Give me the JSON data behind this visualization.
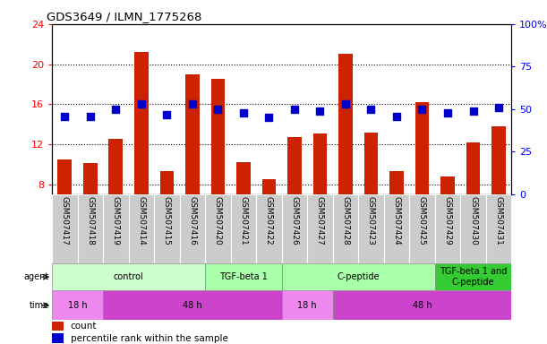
{
  "title": "GDS3649 / ILMN_1775268",
  "samples": [
    "GSM507417",
    "GSM507418",
    "GSM507419",
    "GSM507414",
    "GSM507415",
    "GSM507416",
    "GSM507420",
    "GSM507421",
    "GSM507422",
    "GSM507426",
    "GSM507427",
    "GSM507428",
    "GSM507423",
    "GSM507424",
    "GSM507425",
    "GSM507429",
    "GSM507430",
    "GSM507431"
  ],
  "counts": [
    10.5,
    10.1,
    12.5,
    21.2,
    9.3,
    19.0,
    18.5,
    10.2,
    8.5,
    12.7,
    13.1,
    21.0,
    13.2,
    9.3,
    16.2,
    8.8,
    12.2,
    13.8
  ],
  "percentiles": [
    46,
    46,
    50,
    53,
    47,
    53,
    50,
    48,
    45,
    50,
    49,
    53,
    50,
    46,
    50,
    48,
    49,
    51
  ],
  "ylim_left": [
    7,
    24
  ],
  "ylim_right": [
    0,
    100
  ],
  "yticks_left": [
    8,
    12,
    16,
    20,
    24
  ],
  "yticks_right": [
    0,
    25,
    50,
    75,
    100
  ],
  "ytick_labels_right": [
    "0",
    "25",
    "50",
    "75",
    "100%"
  ],
  "bar_color": "#cc2200",
  "dot_color": "#0000cc",
  "agent_groups": [
    {
      "label": "control",
      "start": 0,
      "end": 6,
      "color": "#ccffcc"
    },
    {
      "label": "TGF-beta 1",
      "start": 6,
      "end": 9,
      "color": "#aaffaa"
    },
    {
      "label": "C-peptide",
      "start": 9,
      "end": 15,
      "color": "#aaffaa"
    },
    {
      "label": "TGF-beta 1 and\nC-peptide",
      "start": 15,
      "end": 18,
      "color": "#33cc33"
    }
  ],
  "time_groups": [
    {
      "label": "18 h",
      "start": 0,
      "end": 2,
      "color": "#ee88ee"
    },
    {
      "label": "48 h",
      "start": 2,
      "end": 9,
      "color": "#cc44cc"
    },
    {
      "label": "18 h",
      "start": 9,
      "end": 11,
      "color": "#ee88ee"
    },
    {
      "label": "48 h",
      "start": 11,
      "end": 18,
      "color": "#cc44cc"
    }
  ],
  "legend_items": [
    {
      "label": "count",
      "color": "#cc2200"
    },
    {
      "label": "percentile rank within the sample",
      "color": "#0000cc"
    }
  ],
  "bar_width": 0.55,
  "dot_size": 35,
  "tick_area_color": "#cccccc"
}
